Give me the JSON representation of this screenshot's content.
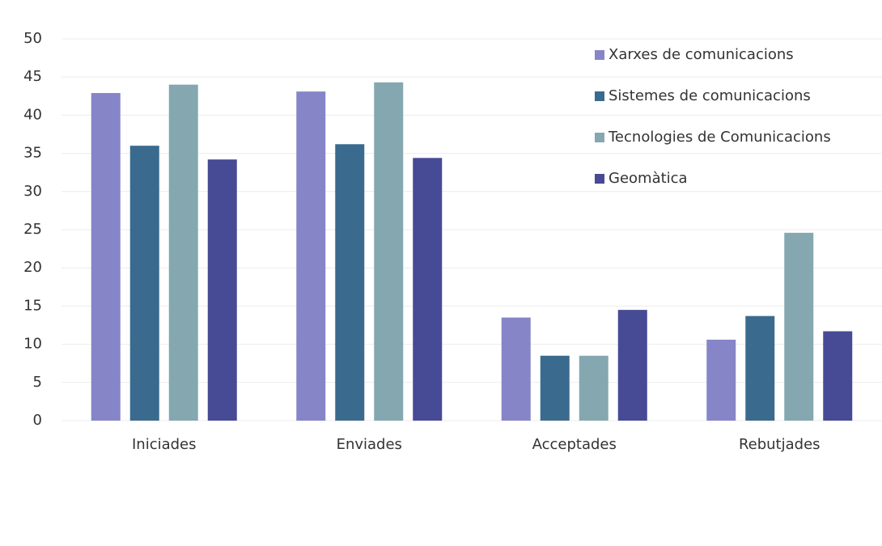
{
  "chart_data": {
    "type": "bar",
    "categories": [
      "Iniciades",
      "Enviades",
      "Acceptades",
      "Rebutjades"
    ],
    "series": [
      {
        "name": "Xarxes de comunicacions",
        "color": "#8585c8",
        "values": [
          42.9,
          43.1,
          13.5,
          10.6
        ]
      },
      {
        "name": "Sistemes de comunicacions",
        "color": "#3a6b8e",
        "values": [
          36,
          36.2,
          8.5,
          13.7
        ]
      },
      {
        "name": "Tecnologies de Comunicacions",
        "color": "#85a8b0",
        "values": [
          44,
          44.3,
          8.5,
          24.6
        ]
      },
      {
        "name": "Geomàtica",
        "color": "#474a94",
        "values": [
          34.2,
          34.4,
          14.5,
          11.7
        ]
      }
    ],
    "ylim": [
      0,
      50
    ],
    "yticks": [
      0,
      5,
      10,
      15,
      20,
      25,
      30,
      35,
      40,
      45,
      50
    ],
    "grid": true,
    "legend": "upper right"
  }
}
